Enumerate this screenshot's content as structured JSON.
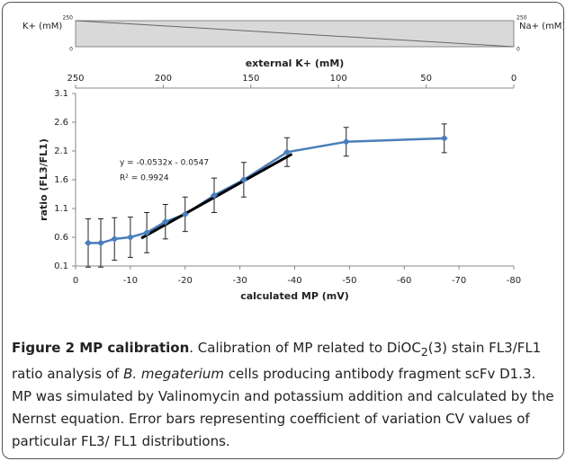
{
  "chart_data": {
    "type": "line",
    "x_label": "calculated MP (mV)",
    "top_x_label": "external K+ (mM)",
    "y_label": "ratio (FL3/FL1)",
    "x": [
      -2.3,
      -4.6,
      -7.1,
      -10,
      -13,
      -16.4,
      -20,
      -25.3,
      -30.7,
      -38.6,
      -49.4,
      -67.3
    ],
    "series": [
      {
        "color": "#4a7ebb",
        "values": [
          0.5,
          0.5,
          0.57,
          0.6,
          0.68,
          0.87,
          1.0,
          1.33,
          1.6,
          2.08,
          2.26,
          2.32
        ],
        "errors": [
          0.42,
          0.42,
          0.37,
          0.35,
          0.35,
          0.3,
          0.3,
          0.3,
          0.3,
          0.25,
          0.25,
          0.25
        ]
      }
    ],
    "trendline": {
      "color": "#000000",
      "x": [
        -12,
        -39.5
      ],
      "values": [
        0.584,
        2.047
      ],
      "equation": "y = -0.0532x - 0.0547",
      "r2": "R² = 0.9924"
    },
    "xlim": [
      0,
      -80
    ],
    "xticks": [
      0,
      -10,
      -20,
      -30,
      -40,
      -50,
      -60,
      -70,
      -80
    ],
    "top_xlim": [
      250,
      0
    ],
    "top_xticks": [
      250,
      200,
      150,
      100,
      50,
      0
    ],
    "ylim": [
      0.1,
      3.1
    ],
    "yticks": [
      0.1,
      0.6,
      1.1,
      1.6,
      2.1,
      2.6,
      3.1
    ],
    "gradient_bar": {
      "left_label": "K+ (mM)",
      "right_label": "Na+ (mM)",
      "left_ticks": [
        250,
        0
      ],
      "right_ticks": [
        250,
        0
      ],
      "color": "#d9d9d9"
    }
  },
  "caption": {
    "title": "Figure 2 MP calibration",
    "text1": ". Calibration of MP related to DiOC",
    "sub": "2",
    "text2": "(3) stain FL3/FL1 ratio analysis of ",
    "italic": "B. megaterium",
    "text3": " cells producing antibody fragment scFv D1.3. MP was simulated by Valinomycin and potassium addition and calculated by the Nernst equation. Error bars representing coefficient of variation CV values of particular FL3/ FL1 distributions."
  }
}
